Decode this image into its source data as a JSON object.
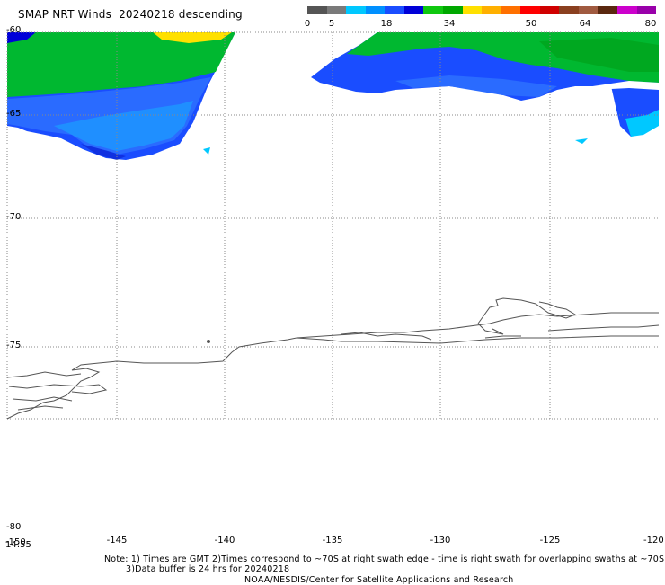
{
  "title": {
    "product": "SMAP NRT Winds",
    "date": "20240218",
    "pass": "descending"
  },
  "colorscale": {
    "labels": [
      "0",
      "5",
      "18",
      "34",
      "50",
      "64",
      "80"
    ],
    "colors": [
      "#555555",
      "#7a7a7a",
      "#00c8ff",
      "#0090ff",
      "#1a4dff",
      "#0000d8",
      "#10c810",
      "#00a800",
      "#ffe000",
      "#ffb000",
      "#ff7000",
      "#ff0000",
      "#d00000",
      "#8a4020",
      "#a05a40",
      "#5a2810",
      "#cc00cc",
      "#9900aa"
    ]
  },
  "map": {
    "x_ticks": [
      "-150",
      "-145",
      "-140",
      "-135",
      "-130",
      "-125",
      "-120"
    ],
    "y_ticks": [
      "-60",
      "-65",
      "-70",
      "-75",
      "-80"
    ],
    "corner_label": "14:55",
    "axis_extra_label": "-150"
  },
  "notes": {
    "line1": "Note: 1) Times are GMT 2)Times correspond to ~70S at right swath edge - time is right swath for overlapping swaths at ~70S",
    "line2": "3)Data buffer is 24 hrs for 20240218",
    "credit": "NOAA/NESDIS/Center for Satellite Applications and Research"
  }
}
